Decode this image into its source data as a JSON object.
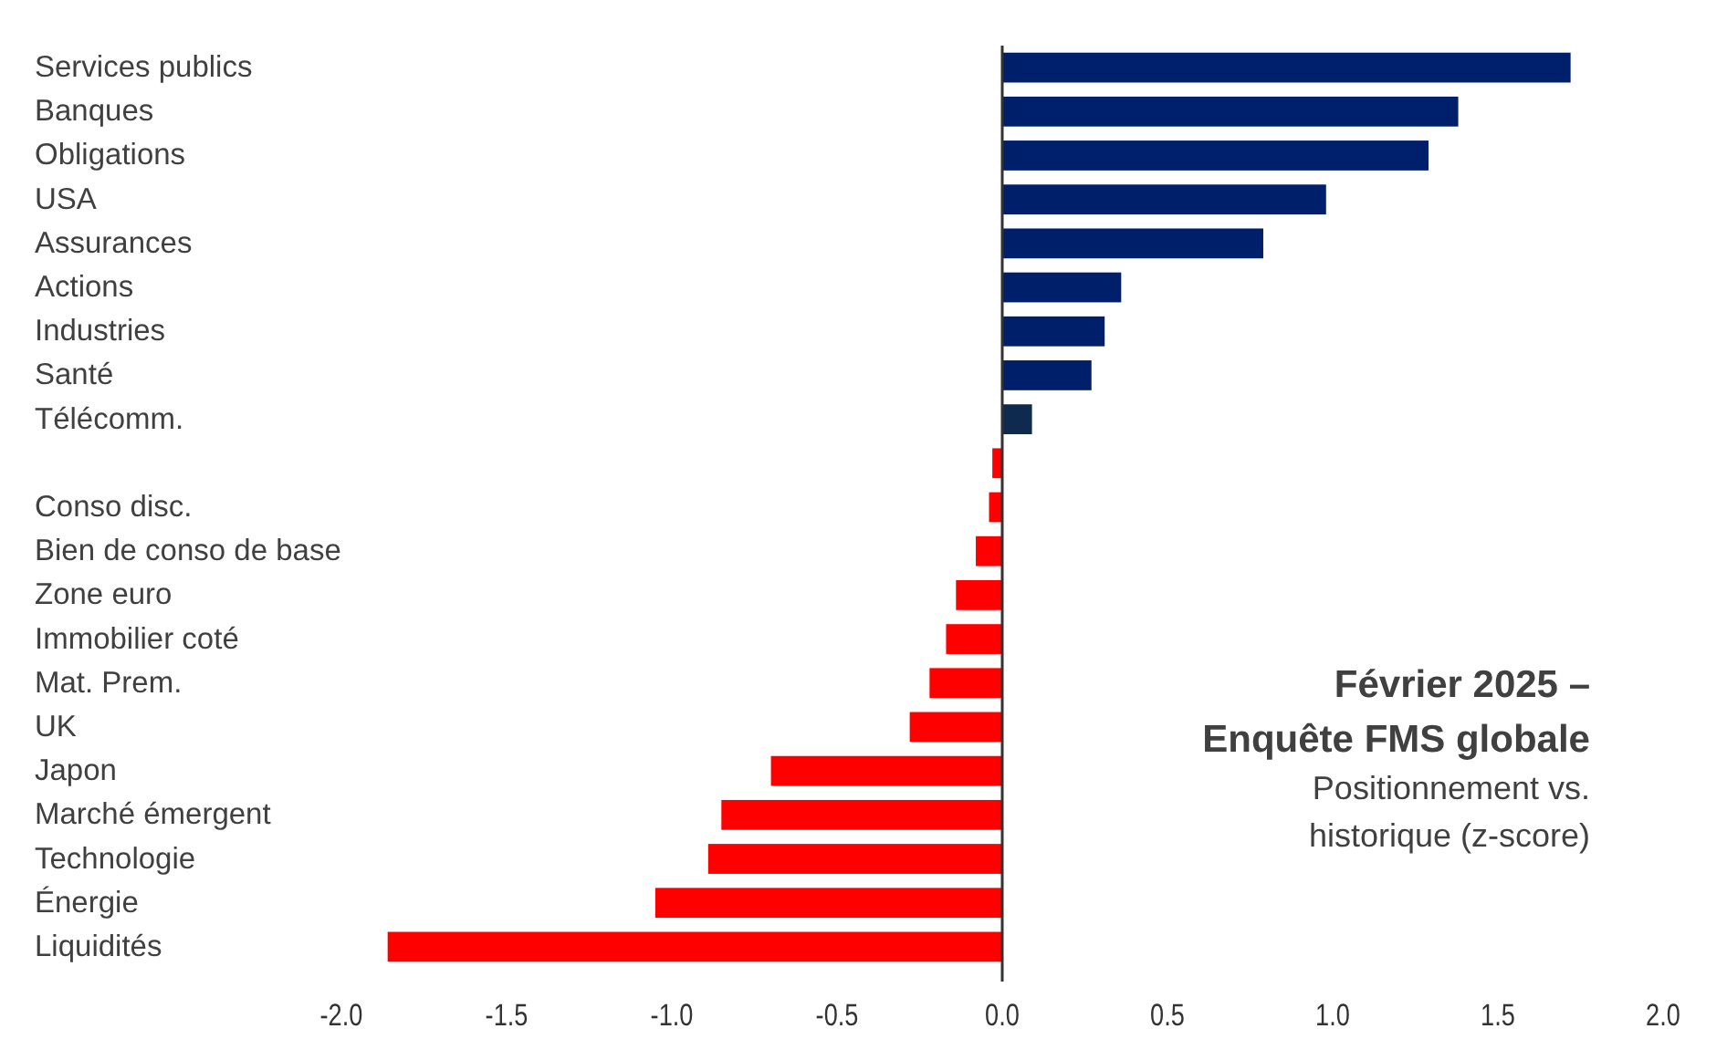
{
  "chart_data": {
    "type": "bar",
    "orientation": "horizontal",
    "title": "Février 2025 – Enquête FMS globale",
    "subtitle": "Positionnement vs. historique (z-score)",
    "categories": [
      "Services publics",
      "Banques",
      "Obligations",
      "USA",
      "Assurances",
      "Actions",
      "Industries",
      "Santé",
      "Télécomm.",
      null,
      "Conso disc.",
      "Bien de conso de base",
      "Zone euro",
      "Immobilier coté",
      "Mat. Prem.",
      "UK",
      "Japon",
      "Marché émergent",
      "Technologie",
      "Énergie",
      "Liquidités"
    ],
    "values": [
      1.72,
      1.38,
      1.29,
      0.98,
      0.79,
      0.36,
      0.31,
      0.27,
      0.09,
      -0.03,
      -0.04,
      -0.08,
      -0.14,
      -0.17,
      -0.22,
      -0.28,
      -0.7,
      -0.85,
      -0.89,
      -1.05,
      -1.86
    ],
    "colors": [
      "#001f6b",
      "#001f6b",
      "#001f6b",
      "#001f6b",
      "#001f6b",
      "#001f6b",
      "#001f6b",
      "#001f6b",
      "#0f2a4f",
      "#ff0000",
      "#ff0000",
      "#ff0000",
      "#ff0000",
      "#ff0000",
      "#ff0000",
      "#ff0000",
      "#ff0000",
      "#ff0000",
      "#ff0000",
      "#ff0000",
      "#ff0000"
    ],
    "xlim": [
      -2,
      2
    ],
    "xticks": [
      {
        "value": -2,
        "label": "-2.0"
      },
      {
        "value": -1.5,
        "label": "-1.5"
      },
      {
        "value": -1,
        "label": "-1.0"
      },
      {
        "value": -0.5,
        "label": "-0.5"
      },
      {
        "value": 0,
        "label": "0.0"
      },
      {
        "value": 0.5,
        "label": "0.5"
      },
      {
        "value": 1,
        "label": "1.0"
      },
      {
        "value": 1.5,
        "label": "1.5"
      },
      {
        "value": 2,
        "label": "2.0"
      }
    ]
  }
}
